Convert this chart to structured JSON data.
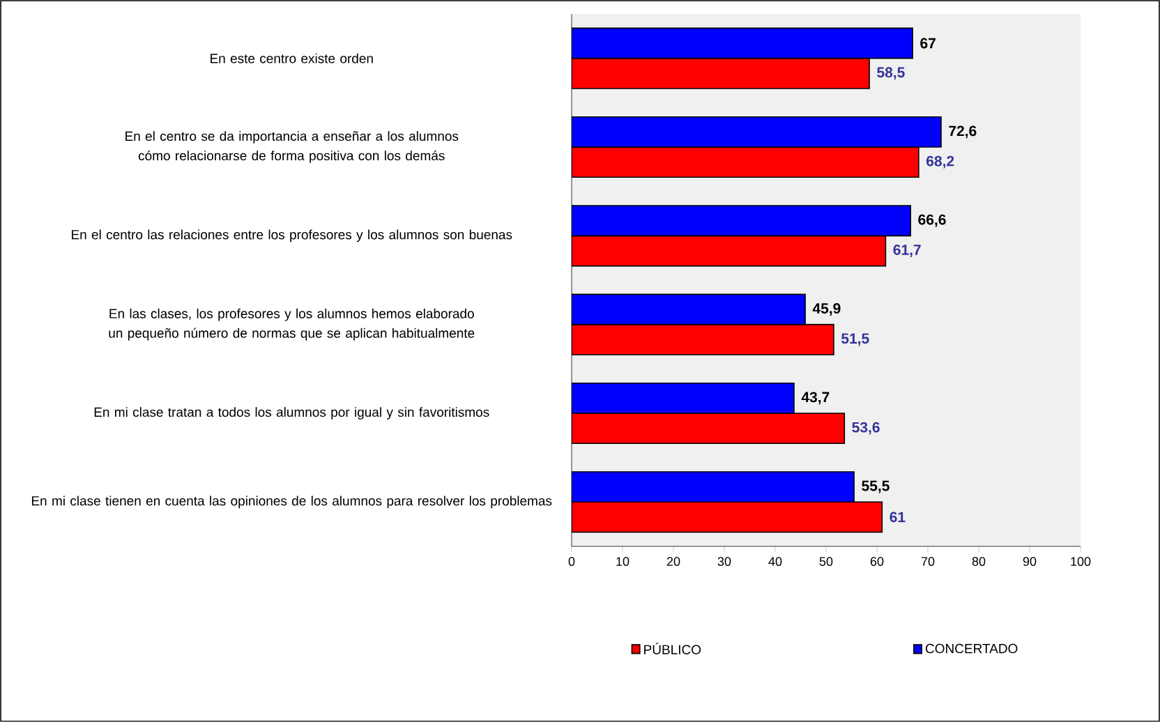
{
  "chart_data": {
    "type": "bar",
    "orientation": "horizontal",
    "categories": [
      "En este centro existe orden",
      "En el centro se da importancia a enseñar a los alumnos cómo relacionarse de forma positiva con los demás",
      "En el centro las relaciones entre los profesores y los alumnos son buenas",
      "En las clases, los profesores y los alumnos hemos elaborado un pequeño número de normas que se aplican habitualmente",
      "En mi clase tratan a todos los alumnos por igual y sin favoritismos",
      "En mi clase tienen en cuenta las opiniones de los alumnos para resolver los problemas"
    ],
    "series": [
      {
        "name": "PÚBLICO",
        "color": "#ff0000",
        "values": [
          58.5,
          68.2,
          61.7,
          51.5,
          53.6,
          61
        ],
        "value_labels": [
          "58,5",
          "68,2",
          "61,7",
          "51,5",
          "53,6",
          "61"
        ]
      },
      {
        "name": "CONCERTADO",
        "color": "#0000ff",
        "values": [
          67,
          72.6,
          66.6,
          45.9,
          43.7,
          55.5
        ],
        "value_labels": [
          "67",
          "72,6",
          "66,6",
          "45,9",
          "43,7",
          "55,5"
        ]
      }
    ],
    "xlim": [
      0,
      100
    ],
    "xticks": [
      0,
      10,
      20,
      30,
      40,
      50,
      60,
      70,
      80,
      90,
      100
    ],
    "grid": false,
    "legend": "bottom"
  }
}
